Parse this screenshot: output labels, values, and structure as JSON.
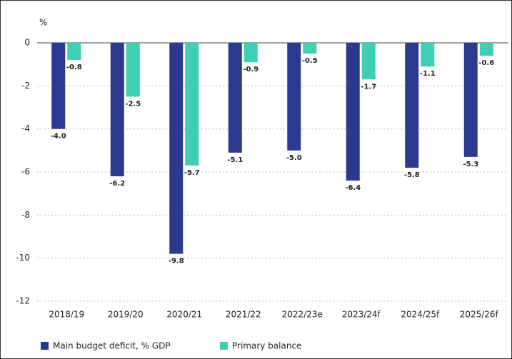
{
  "chart_data": {
    "type": "bar",
    "y_label": "%",
    "categories": [
      "2018/19",
      "2019/20",
      "2020/21",
      "2021/22",
      "2022/23e",
      "2023/24f",
      "2024/25f",
      "2025/26f"
    ],
    "series": [
      {
        "name": "Main budget deficit, % GDP",
        "color": "#2b3990",
        "values": [
          -4.0,
          -6.2,
          -9.8,
          -5.1,
          -5.0,
          -6.4,
          -5.8,
          -5.3
        ],
        "value_labels": [
          "-4.0",
          "-6.2",
          "-9.8",
          "-5.1",
          "-5.0",
          "-6.4",
          "-5.8",
          "-5.3"
        ]
      },
      {
        "name": "Primary balance",
        "color": "#3ecfb4",
        "values": [
          -0.8,
          -2.5,
          -5.7,
          -0.9,
          -0.5,
          -1.7,
          -1.1,
          -0.6
        ],
        "value_labels": [
          "-0.8",
          "-2.5",
          "-5.7",
          "-0.9",
          "-0.5",
          "-1.7",
          "-1.1",
          "-0.6"
        ]
      }
    ],
    "ylim": [
      -12,
      0
    ],
    "yticks": [
      0,
      -2,
      -4,
      -6,
      -8,
      -10,
      -12
    ],
    "grid": true
  }
}
